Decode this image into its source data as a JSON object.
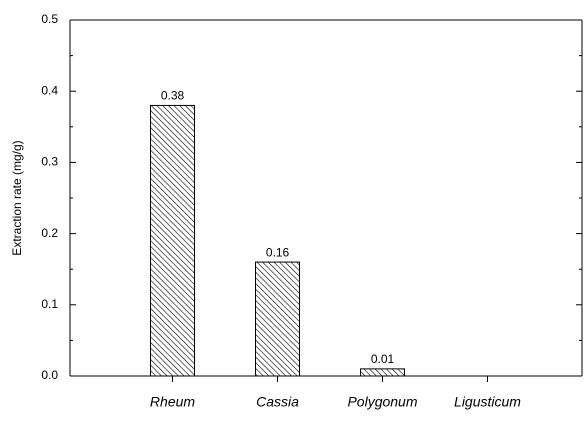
{
  "chart_data": {
    "type": "bar",
    "y_label": "Extraction rate  (mg/g)",
    "categories": [
      "Rheum",
      "Cassia",
      "Polygonum",
      "Ligusticum"
    ],
    "values": [
      0.38,
      0.16,
      0.01,
      null
    ],
    "ylim": [
      0,
      0.5
    ],
    "yticks": [
      {
        "value": 0,
        "label": "0.0"
      },
      0.1,
      0.2,
      0.3,
      0.4,
      0.5
    ],
    "hatch": "diagonal",
    "color": "#000000"
  }
}
